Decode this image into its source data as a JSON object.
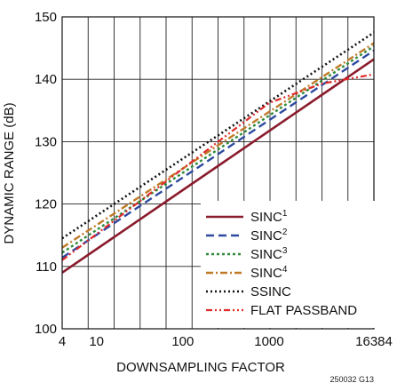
{
  "chart_data": {
    "type": "line",
    "xlabel": "DOWNSAMPLING FACTOR",
    "ylabel": "DYNAMIC RANGE (dB)",
    "x_scale": "log",
    "xlim": [
      4,
      16384
    ],
    "ylim": [
      100,
      150
    ],
    "x_tick_labels": [
      "4",
      "10",
      "100",
      "1000",
      "16384"
    ],
    "y_tick_labels": [
      "100",
      "110",
      "120",
      "130",
      "140",
      "150"
    ],
    "x_ticks": [
      4,
      10,
      100,
      1000,
      16384
    ],
    "y_ticks": [
      100,
      110,
      120,
      130,
      140,
      150
    ],
    "vertical_gridlines": [
      4,
      8,
      16,
      32,
      64,
      128,
      256,
      512,
      1024,
      2048,
      4096,
      8192,
      16384
    ],
    "grid": true,
    "legend_placement": "bottom-right",
    "series": [
      {
        "name": "SINC",
        "sup": "1",
        "color": "#8b1c2c",
        "dash": "solid",
        "points": [
          [
            4,
            109
          ],
          [
            16384,
            143.2
          ]
        ]
      },
      {
        "name": "SINC",
        "sup": "2",
        "color": "#2e4aa0",
        "dash": "dash",
        "points": [
          [
            4,
            111.4
          ],
          [
            16384,
            144.6
          ]
        ]
      },
      {
        "name": "SINC",
        "sup": "3",
        "color": "#2e8a3a",
        "dash": "dot",
        "points": [
          [
            4,
            112.2
          ],
          [
            16384,
            145.3
          ]
        ]
      },
      {
        "name": "SINC",
        "sup": "4",
        "color": "#c07a28",
        "dash": "dashdot",
        "points": [
          [
            4,
            113
          ],
          [
            16384,
            145.8
          ]
        ]
      },
      {
        "name": "SSINC",
        "sup": "",
        "color": "#111111",
        "dash": "dense-dot",
        "points": [
          [
            4,
            114.5
          ],
          [
            16384,
            147.5
          ]
        ]
      },
      {
        "name": "FLAT PASSBAND",
        "sup": "",
        "color": "#e02a2a",
        "dash": "dashdotdot",
        "points": [
          [
            4,
            111
          ],
          [
            1000,
            136.2
          ],
          [
            4096,
            139.3
          ],
          [
            16384,
            140.8
          ]
        ]
      }
    ]
  },
  "figure_id": "250032 G13"
}
